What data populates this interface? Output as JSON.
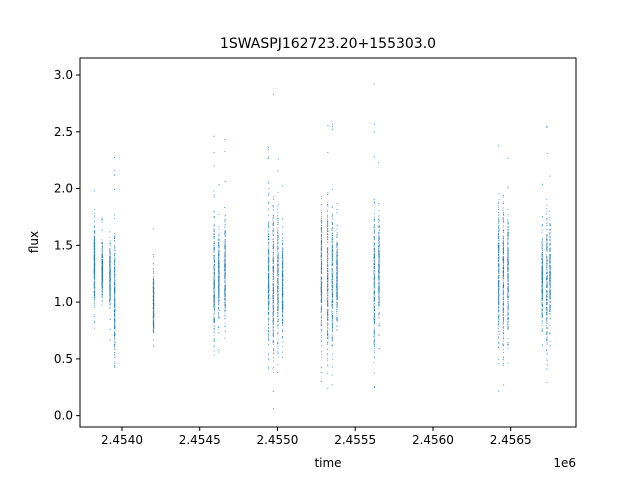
{
  "chart_data": {
    "type": "scatter",
    "title": "1SWASPJ162723.20+155303.0",
    "xlabel": "time",
    "ylabel": "flux",
    "x_offset_label": "1e6",
    "x_ticks": [
      {
        "value": 2.454,
        "label": "2.4540"
      },
      {
        "value": 2.4545,
        "label": "2.4545"
      },
      {
        "value": 2.455,
        "label": "2.4550"
      },
      {
        "value": 2.4555,
        "label": "2.4555"
      },
      {
        "value": 2.456,
        "label": "2.4560"
      },
      {
        "value": 2.4565,
        "label": "2.4565"
      }
    ],
    "y_ticks": [
      {
        "value": 0.0,
        "label": "0.0"
      },
      {
        "value": 0.5,
        "label": "0.5"
      },
      {
        "value": 1.0,
        "label": "1.0"
      },
      {
        "value": 1.5,
        "label": "1.5"
      },
      {
        "value": 2.0,
        "label": "2.0"
      },
      {
        "value": 2.5,
        "label": "2.5"
      },
      {
        "value": 3.0,
        "label": "3.0"
      }
    ],
    "xlim": [
      2.45373,
      2.45692
    ],
    "ylim": [
      -0.1,
      3.15
    ],
    "grid": false,
    "legend": "none",
    "color": "#1f77b4",
    "series": [
      {
        "x": [
          2.45382,
          2.45387,
          2.45392,
          2.45395
        ],
        "y": [
          1.32,
          1.28,
          1.22,
          1.05
        ],
        "spread_low": [
          0.55,
          0.8,
          0.62,
          0.33
        ],
        "spread_high": [
          2.1,
          1.75,
          1.7,
          2.35
        ]
      },
      {
        "x": [
          2.4542
        ],
        "y": [
          1.0
        ],
        "spread_low": [
          0.6
        ],
        "spread_high": [
          1.72
        ]
      },
      {
        "x": [
          2.45459,
          2.45462,
          2.45466
        ],
        "y": [
          1.2,
          1.22,
          1.25
        ],
        "spread_low": [
          0.45,
          0.55,
          0.6
        ],
        "spread_high": [
          2.65,
          2.05,
          2.45
        ]
      },
      {
        "x": [
          2.45494,
          2.45497,
          2.455,
          2.45503
        ],
        "y": [
          1.22,
          1.22,
          1.2,
          1.15
        ],
        "spread_low": [
          0.3,
          0.05,
          0.1,
          0.3
        ],
        "spread_high": [
          2.75,
          2.88,
          2.45,
          2.05
        ]
      },
      {
        "x": [
          2.45528,
          2.45532,
          2.45535,
          2.45538
        ],
        "y": [
          1.25,
          1.22,
          1.2,
          1.22
        ],
        "spread_low": [
          0.08,
          0.03,
          0.2,
          0.5
        ],
        "spread_high": [
          2.5,
          2.7,
          2.6,
          2.25
        ]
      },
      {
        "x": [
          2.45562,
          2.45565
        ],
        "y": [
          1.2,
          1.3
        ],
        "spread_low": [
          0.25,
          0.5
        ],
        "spread_high": [
          3.0,
          2.3
        ]
      },
      {
        "x": [
          2.45642,
          2.45645,
          2.45648
        ],
        "y": [
          1.25,
          1.2,
          1.25
        ],
        "spread_low": [
          0.1,
          0.08,
          0.3
        ],
        "spread_high": [
          2.45,
          2.6,
          2.65
        ]
      },
      {
        "x": [
          2.4567,
          2.45673,
          2.45675
        ],
        "y": [
          1.2,
          1.2,
          1.25
        ],
        "spread_low": [
          0.5,
          0.25,
          0.5
        ],
        "spread_high": [
          2.1,
          2.7,
          2.3
        ]
      }
    ]
  }
}
